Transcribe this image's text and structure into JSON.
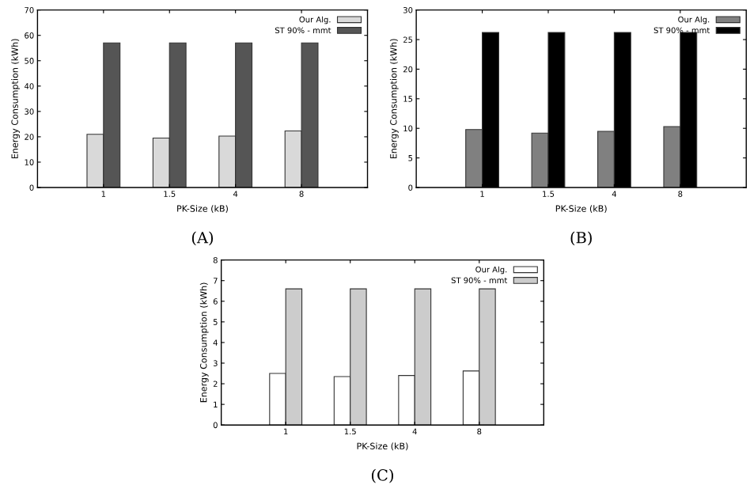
{
  "chart_data": [
    {
      "type": "bar",
      "categories": [
        "1",
        "1.5",
        "4",
        "8"
      ],
      "xlabel": "PK-Size (kB)",
      "ylabel": "Energy Consumption (kWh)",
      "ylim": [
        0,
        70
      ],
      "yticks": [
        0,
        10,
        20,
        30,
        40,
        50,
        60,
        70
      ],
      "legend": "top right",
      "grid": false,
      "annotations": [
        "(A)"
      ],
      "series": [
        {
          "name": "Our Alg.",
          "color": "#d9d9d9",
          "values": [
            21,
            19.5,
            20.3,
            22.3
          ]
        },
        {
          "name": "ST 90% - mmt",
          "color": "#555555",
          "values": [
            57,
            57,
            57,
            57
          ]
        }
      ]
    },
    {
      "type": "bar",
      "categories": [
        "1",
        "1.5",
        "4",
        "8"
      ],
      "xlabel": "PK-Size (kB)",
      "ylabel": "Energy Consumption (kWh)",
      "ylim": [
        0,
        30
      ],
      "yticks": [
        0,
        5,
        10,
        15,
        20,
        25,
        30
      ],
      "legend": "top right",
      "grid": false,
      "annotations": [
        "(B)"
      ],
      "series": [
        {
          "name": "Our Alg.",
          "color": "#808080",
          "values": [
            9.8,
            9.2,
            9.5,
            10.3
          ]
        },
        {
          "name": "ST 90% - mmt",
          "color": "#000000",
          "values": [
            26.2,
            26.2,
            26.2,
            26.2
          ]
        }
      ]
    },
    {
      "type": "bar",
      "categories": [
        "1",
        "1.5",
        "4",
        "8"
      ],
      "xlabel": "PK-Size (kB)",
      "ylabel": "Energy Consumption (kWh)",
      "ylim": [
        0,
        8
      ],
      "yticks": [
        0,
        1,
        2,
        3,
        4,
        5,
        6,
        7,
        8
      ],
      "legend": "top right",
      "grid": false,
      "annotations": [
        "(C)"
      ],
      "series": [
        {
          "name": "Our Alg.",
          "color": "#ffffff",
          "values": [
            2.5,
            2.35,
            2.4,
            2.62
          ]
        },
        {
          "name": "ST 90% - mmt",
          "color": "#cccccc",
          "values": [
            6.6,
            6.6,
            6.6,
            6.6
          ]
        }
      ]
    }
  ]
}
